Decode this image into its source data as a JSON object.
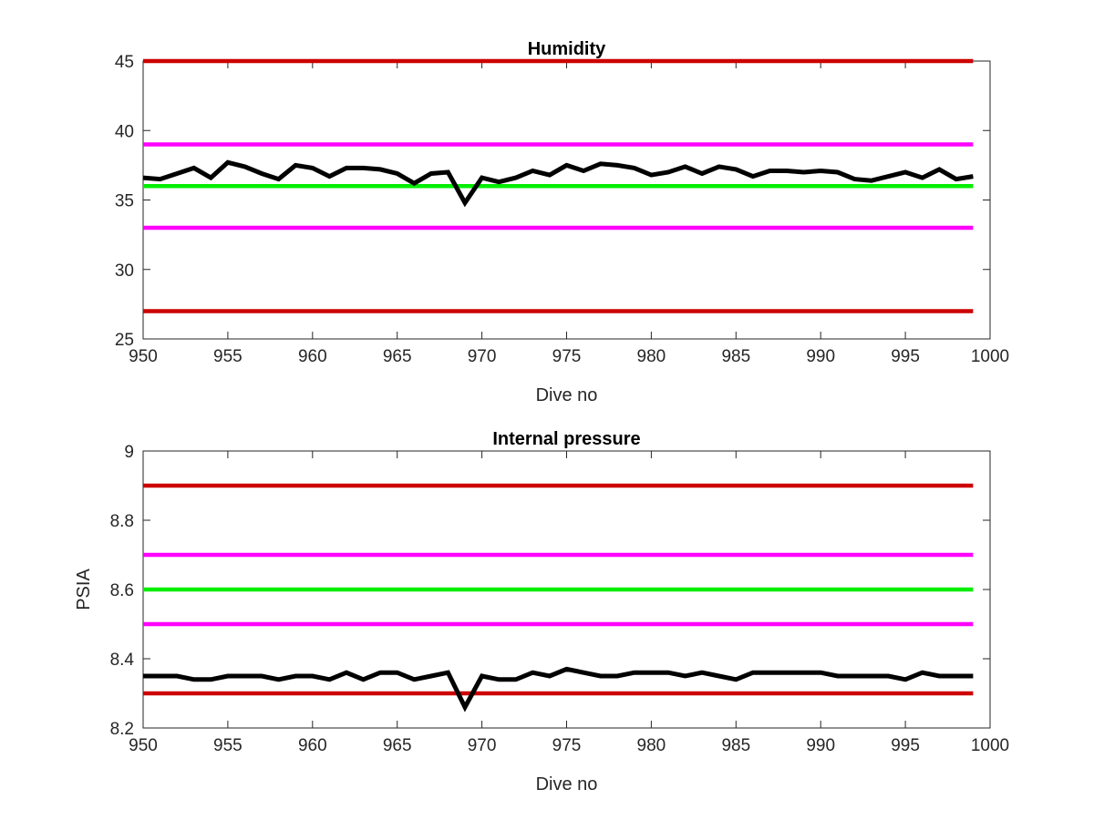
{
  "chart_data": [
    {
      "type": "line",
      "title": "Humidity",
      "xlabel": "Dive no",
      "ylabel": "",
      "xlim": [
        950,
        1000
      ],
      "ylim": [
        25,
        45
      ],
      "xticks": [
        "950",
        "955",
        "960",
        "965",
        "970",
        "975",
        "980",
        "985",
        "990",
        "995",
        "1000"
      ],
      "yticks": [
        "25",
        "30",
        "35",
        "40",
        "45"
      ],
      "grid": false,
      "series": [
        {
          "color": "#cc0000",
          "x": [
            950,
            999
          ],
          "values": [
            45,
            45
          ]
        },
        {
          "color": "#ff00ff",
          "x": [
            950,
            999
          ],
          "values": [
            39,
            39
          ]
        },
        {
          "color": "#00ee00",
          "x": [
            950,
            999
          ],
          "values": [
            36,
            36
          ]
        },
        {
          "color": "#ff00ff",
          "x": [
            950,
            999
          ],
          "values": [
            33,
            33
          ]
        },
        {
          "color": "#cc0000",
          "x": [
            950,
            999
          ],
          "values": [
            27,
            27
          ]
        },
        {
          "color": "#000000",
          "x": [
            950,
            951,
            952,
            953,
            954,
            955,
            956,
            957,
            958,
            959,
            960,
            961,
            962,
            963,
            964,
            965,
            966,
            967,
            968,
            969,
            970,
            971,
            972,
            973,
            974,
            975,
            976,
            977,
            978,
            979,
            980,
            981,
            982,
            983,
            984,
            985,
            986,
            987,
            988,
            989,
            990,
            991,
            992,
            993,
            994,
            995,
            996,
            997,
            998,
            999
          ],
          "values": [
            36.6,
            36.5,
            36.9,
            37.3,
            36.6,
            37.7,
            37.4,
            36.9,
            36.5,
            37.5,
            37.3,
            36.7,
            37.3,
            37.3,
            37.2,
            36.9,
            36.2,
            36.9,
            37.0,
            34.8,
            36.6,
            36.3,
            36.6,
            37.1,
            36.8,
            37.5,
            37.1,
            37.6,
            37.5,
            37.3,
            36.8,
            37.0,
            37.4,
            36.9,
            37.4,
            37.2,
            36.7,
            37.1,
            37.1,
            37.0,
            37.1,
            37.0,
            36.5,
            36.4,
            36.7,
            37.0,
            36.6,
            37.2,
            36.5,
            36.7
          ]
        }
      ]
    },
    {
      "type": "line",
      "title": "Internal pressure",
      "xlabel": "Dive no",
      "ylabel": "PSIA",
      "xlim": [
        950,
        1000
      ],
      "ylim": [
        8.2,
        9
      ],
      "xticks": [
        "950",
        "955",
        "960",
        "965",
        "970",
        "975",
        "980",
        "985",
        "990",
        "995",
        "1000"
      ],
      "yticks": [
        "8.2",
        "8.4",
        "8.6",
        "8.8",
        "9"
      ],
      "grid": false,
      "series": [
        {
          "color": "#cc0000",
          "x": [
            950,
            999
          ],
          "values": [
            8.9,
            8.9
          ]
        },
        {
          "color": "#ff00ff",
          "x": [
            950,
            999
          ],
          "values": [
            8.7,
            8.7
          ]
        },
        {
          "color": "#00ee00",
          "x": [
            950,
            999
          ],
          "values": [
            8.6,
            8.6
          ]
        },
        {
          "color": "#ff00ff",
          "x": [
            950,
            999
          ],
          "values": [
            8.5,
            8.5
          ]
        },
        {
          "color": "#cc0000",
          "x": [
            950,
            999
          ],
          "values": [
            8.3,
            8.3
          ]
        },
        {
          "color": "#000000",
          "x": [
            950,
            951,
            952,
            953,
            954,
            955,
            956,
            957,
            958,
            959,
            960,
            961,
            962,
            963,
            964,
            965,
            966,
            967,
            968,
            969,
            970,
            971,
            972,
            973,
            974,
            975,
            976,
            977,
            978,
            979,
            980,
            981,
            982,
            983,
            984,
            985,
            986,
            987,
            988,
            989,
            990,
            991,
            992,
            993,
            994,
            995,
            996,
            997,
            998,
            999
          ],
          "values": [
            8.35,
            8.35,
            8.35,
            8.34,
            8.34,
            8.35,
            8.35,
            8.35,
            8.34,
            8.35,
            8.35,
            8.34,
            8.36,
            8.34,
            8.36,
            8.36,
            8.34,
            8.35,
            8.36,
            8.26,
            8.35,
            8.34,
            8.34,
            8.36,
            8.35,
            8.37,
            8.36,
            8.35,
            8.35,
            8.36,
            8.36,
            8.36,
            8.35,
            8.36,
            8.35,
            8.34,
            8.36,
            8.36,
            8.36,
            8.36,
            8.36,
            8.35,
            8.35,
            8.35,
            8.35,
            8.34,
            8.36,
            8.35,
            8.35,
            8.35
          ]
        }
      ]
    }
  ]
}
